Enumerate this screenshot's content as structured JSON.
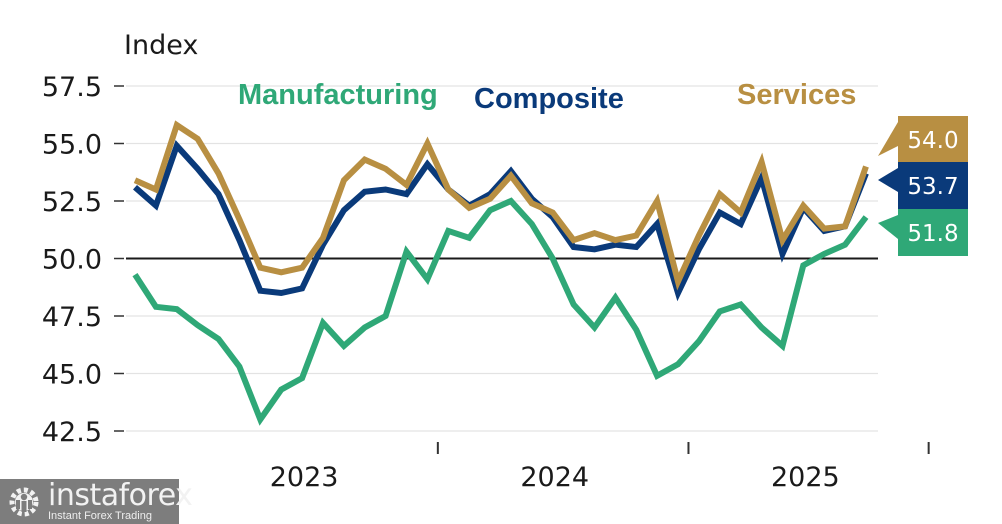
{
  "chart_data": {
    "type": "line",
    "title": "",
    "ylabel": "Index",
    "xlabel": "",
    "ylim": [
      42.5,
      57.5
    ],
    "yticks": [
      "57.5",
      "55.0",
      "52.5",
      "50.0",
      "47.5",
      "45.0",
      "42.5"
    ],
    "ytick_values": [
      57.5,
      55.0,
      52.5,
      50.0,
      47.5,
      45.0,
      42.5
    ],
    "xtick_labels": [
      "2023",
      "2024",
      "2025"
    ],
    "reference_line": 50.0,
    "grid": true,
    "x_start": "2022-10",
    "x_end": "2025-09",
    "frequency": "monthly",
    "series": [
      {
        "name": "Manufacturing",
        "color": "#2fa877",
        "last_value_label": "51.8",
        "values": [
          49.3,
          47.9,
          47.8,
          47.1,
          46.5,
          45.3,
          43.0,
          44.3,
          44.8,
          47.2,
          46.2,
          47.0,
          47.5,
          50.3,
          49.1,
          51.2,
          50.9,
          52.1,
          52.5,
          51.5,
          50.0,
          48.0,
          47.0,
          48.3,
          46.9,
          44.9,
          45.4,
          46.4,
          47.7,
          48.0,
          47.0,
          46.2,
          49.7,
          50.2,
          50.6,
          51.8
        ]
      },
      {
        "name": "Composite",
        "color": "#0a3a7a",
        "last_value_label": "53.7",
        "values": [
          53.1,
          52.3,
          54.9,
          53.9,
          52.8,
          50.8,
          48.6,
          48.5,
          48.7,
          50.6,
          52.1,
          52.9,
          53.0,
          52.8,
          54.1,
          53.0,
          52.3,
          52.8,
          53.8,
          52.6,
          51.8,
          50.5,
          50.4,
          50.6,
          50.5,
          51.5,
          48.5,
          50.4,
          52.0,
          51.5,
          53.5,
          50.2,
          52.2,
          51.2,
          51.4,
          53.7
        ]
      },
      {
        "name": "Services",
        "color": "#b88f42",
        "last_value_label": "54.0",
        "values": [
          53.4,
          53.0,
          55.8,
          55.2,
          53.7,
          51.7,
          49.6,
          49.4,
          49.6,
          50.9,
          53.4,
          54.3,
          53.9,
          53.2,
          55.0,
          53.0,
          52.2,
          52.6,
          53.6,
          52.4,
          52.0,
          50.8,
          51.1,
          50.8,
          51.0,
          52.5,
          49.0,
          51.0,
          52.8,
          52.0,
          54.2,
          50.8,
          52.3,
          51.3,
          51.4,
          54.0
        ]
      }
    ],
    "legend": [
      {
        "label": "Manufacturing",
        "color": "#2fa877",
        "placement": "top-left"
      },
      {
        "label": "Composite",
        "color": "#0a3a7a",
        "placement": "top-center"
      },
      {
        "label": "Services",
        "color": "#b88f42",
        "placement": "top-right"
      }
    ]
  },
  "watermark": {
    "brand": "instaforex",
    "tagline": "Instant Forex Trading",
    "icon": "gear-person-logo-icon"
  }
}
